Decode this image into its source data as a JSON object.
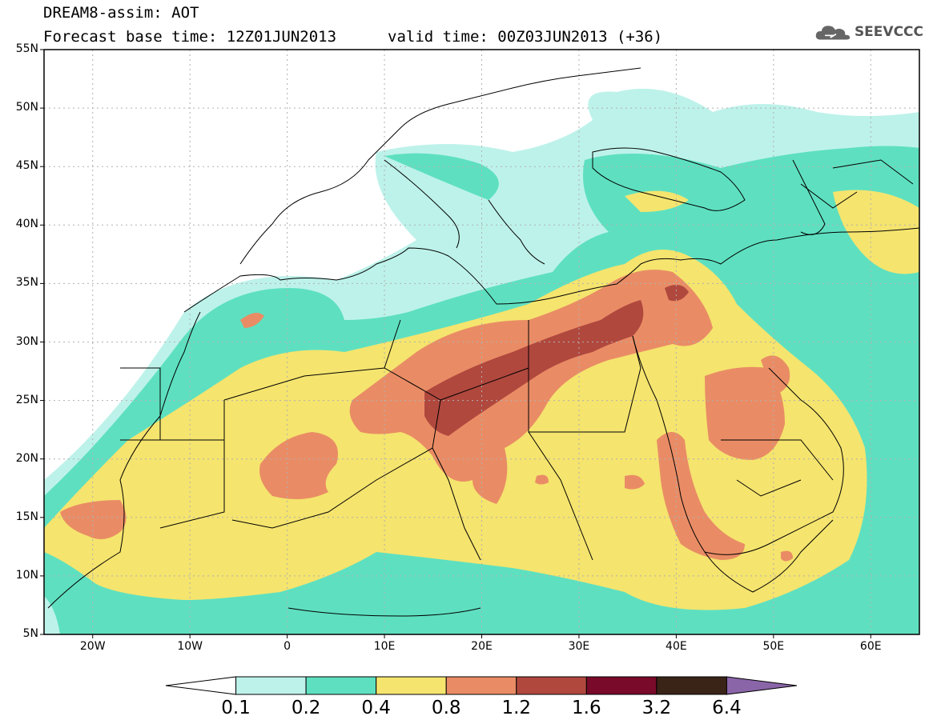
{
  "title": {
    "line1": "DREAM8-assim: AOT",
    "line2": "Forecast base time: 12Z01JUN2013",
    "valid": "valid time: 00Z03JUN2013 (+36)"
  },
  "logo": {
    "text": "SEEVCCC",
    "icon": "cloud-icon"
  },
  "axes": {
    "lat_labels": [
      "55N",
      "50N",
      "45N",
      "40N",
      "35N",
      "30N",
      "25N",
      "20N",
      "15N",
      "10N",
      "5N"
    ],
    "lon_labels": [
      "20W",
      "10W",
      "0",
      "10E",
      "20E",
      "30E",
      "40E",
      "50E",
      "60E"
    ],
    "lat_range": [
      5,
      55
    ],
    "lon_range": [
      -25,
      65
    ]
  },
  "colorbar": {
    "labels": [
      "0.1",
      "0.2",
      "0.4",
      "0.8",
      "1.2",
      "1.6",
      "3.2",
      "6.4"
    ],
    "colors": [
      "#ffffff",
      "#bdf2ea",
      "#5ee0c0",
      "#f5e46e",
      "#e98c65",
      "#b0483e",
      "#7a0a2a",
      "#3a2418",
      "#8a65a8"
    ]
  },
  "map_colors": {
    "level1": "#bdf2ea",
    "level2": "#5ee0c0",
    "level3": "#f5e46e",
    "level4": "#e98c65",
    "level5": "#b0483e",
    "land_border": "#000000",
    "grid": "#b0b0b0"
  }
}
